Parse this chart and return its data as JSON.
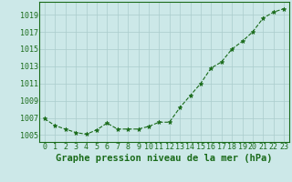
{
  "x": [
    0,
    1,
    2,
    3,
    4,
    5,
    6,
    7,
    8,
    9,
    10,
    11,
    12,
    13,
    14,
    15,
    16,
    17,
    18,
    19,
    20,
    21,
    22,
    23
  ],
  "y": [
    1006.9,
    1006.1,
    1005.7,
    1005.3,
    1005.1,
    1005.6,
    1006.4,
    1005.7,
    1005.7,
    1005.7,
    1006.0,
    1006.5,
    1006.5,
    1008.2,
    1009.6,
    1011.0,
    1012.8,
    1013.5,
    1015.0,
    1015.9,
    1017.0,
    1018.6,
    1019.3,
    1019.7
  ],
  "line_color": "#1a6b1a",
  "marker": "*",
  "marker_size": 3.5,
  "background_color": "#cce8e8",
  "grid_color": "#aacccc",
  "title": "Graphe pression niveau de la mer (hPa)",
  "title_fontsize": 7.5,
  "title_color": "#1a6b1a",
  "ylabel_ticks": [
    1005,
    1007,
    1009,
    1011,
    1013,
    1015,
    1017,
    1019
  ],
  "xlabel_ticks": [
    0,
    1,
    2,
    3,
    4,
    5,
    6,
    7,
    8,
    9,
    10,
    11,
    12,
    13,
    14,
    15,
    16,
    17,
    18,
    19,
    20,
    21,
    22,
    23
  ],
  "tick_color": "#1a6b1a",
  "tick_fontsize": 6,
  "ylim": [
    1004.2,
    1020.5
  ],
  "xlim": [
    -0.5,
    23.5
  ],
  "linewidth": 0.8
}
